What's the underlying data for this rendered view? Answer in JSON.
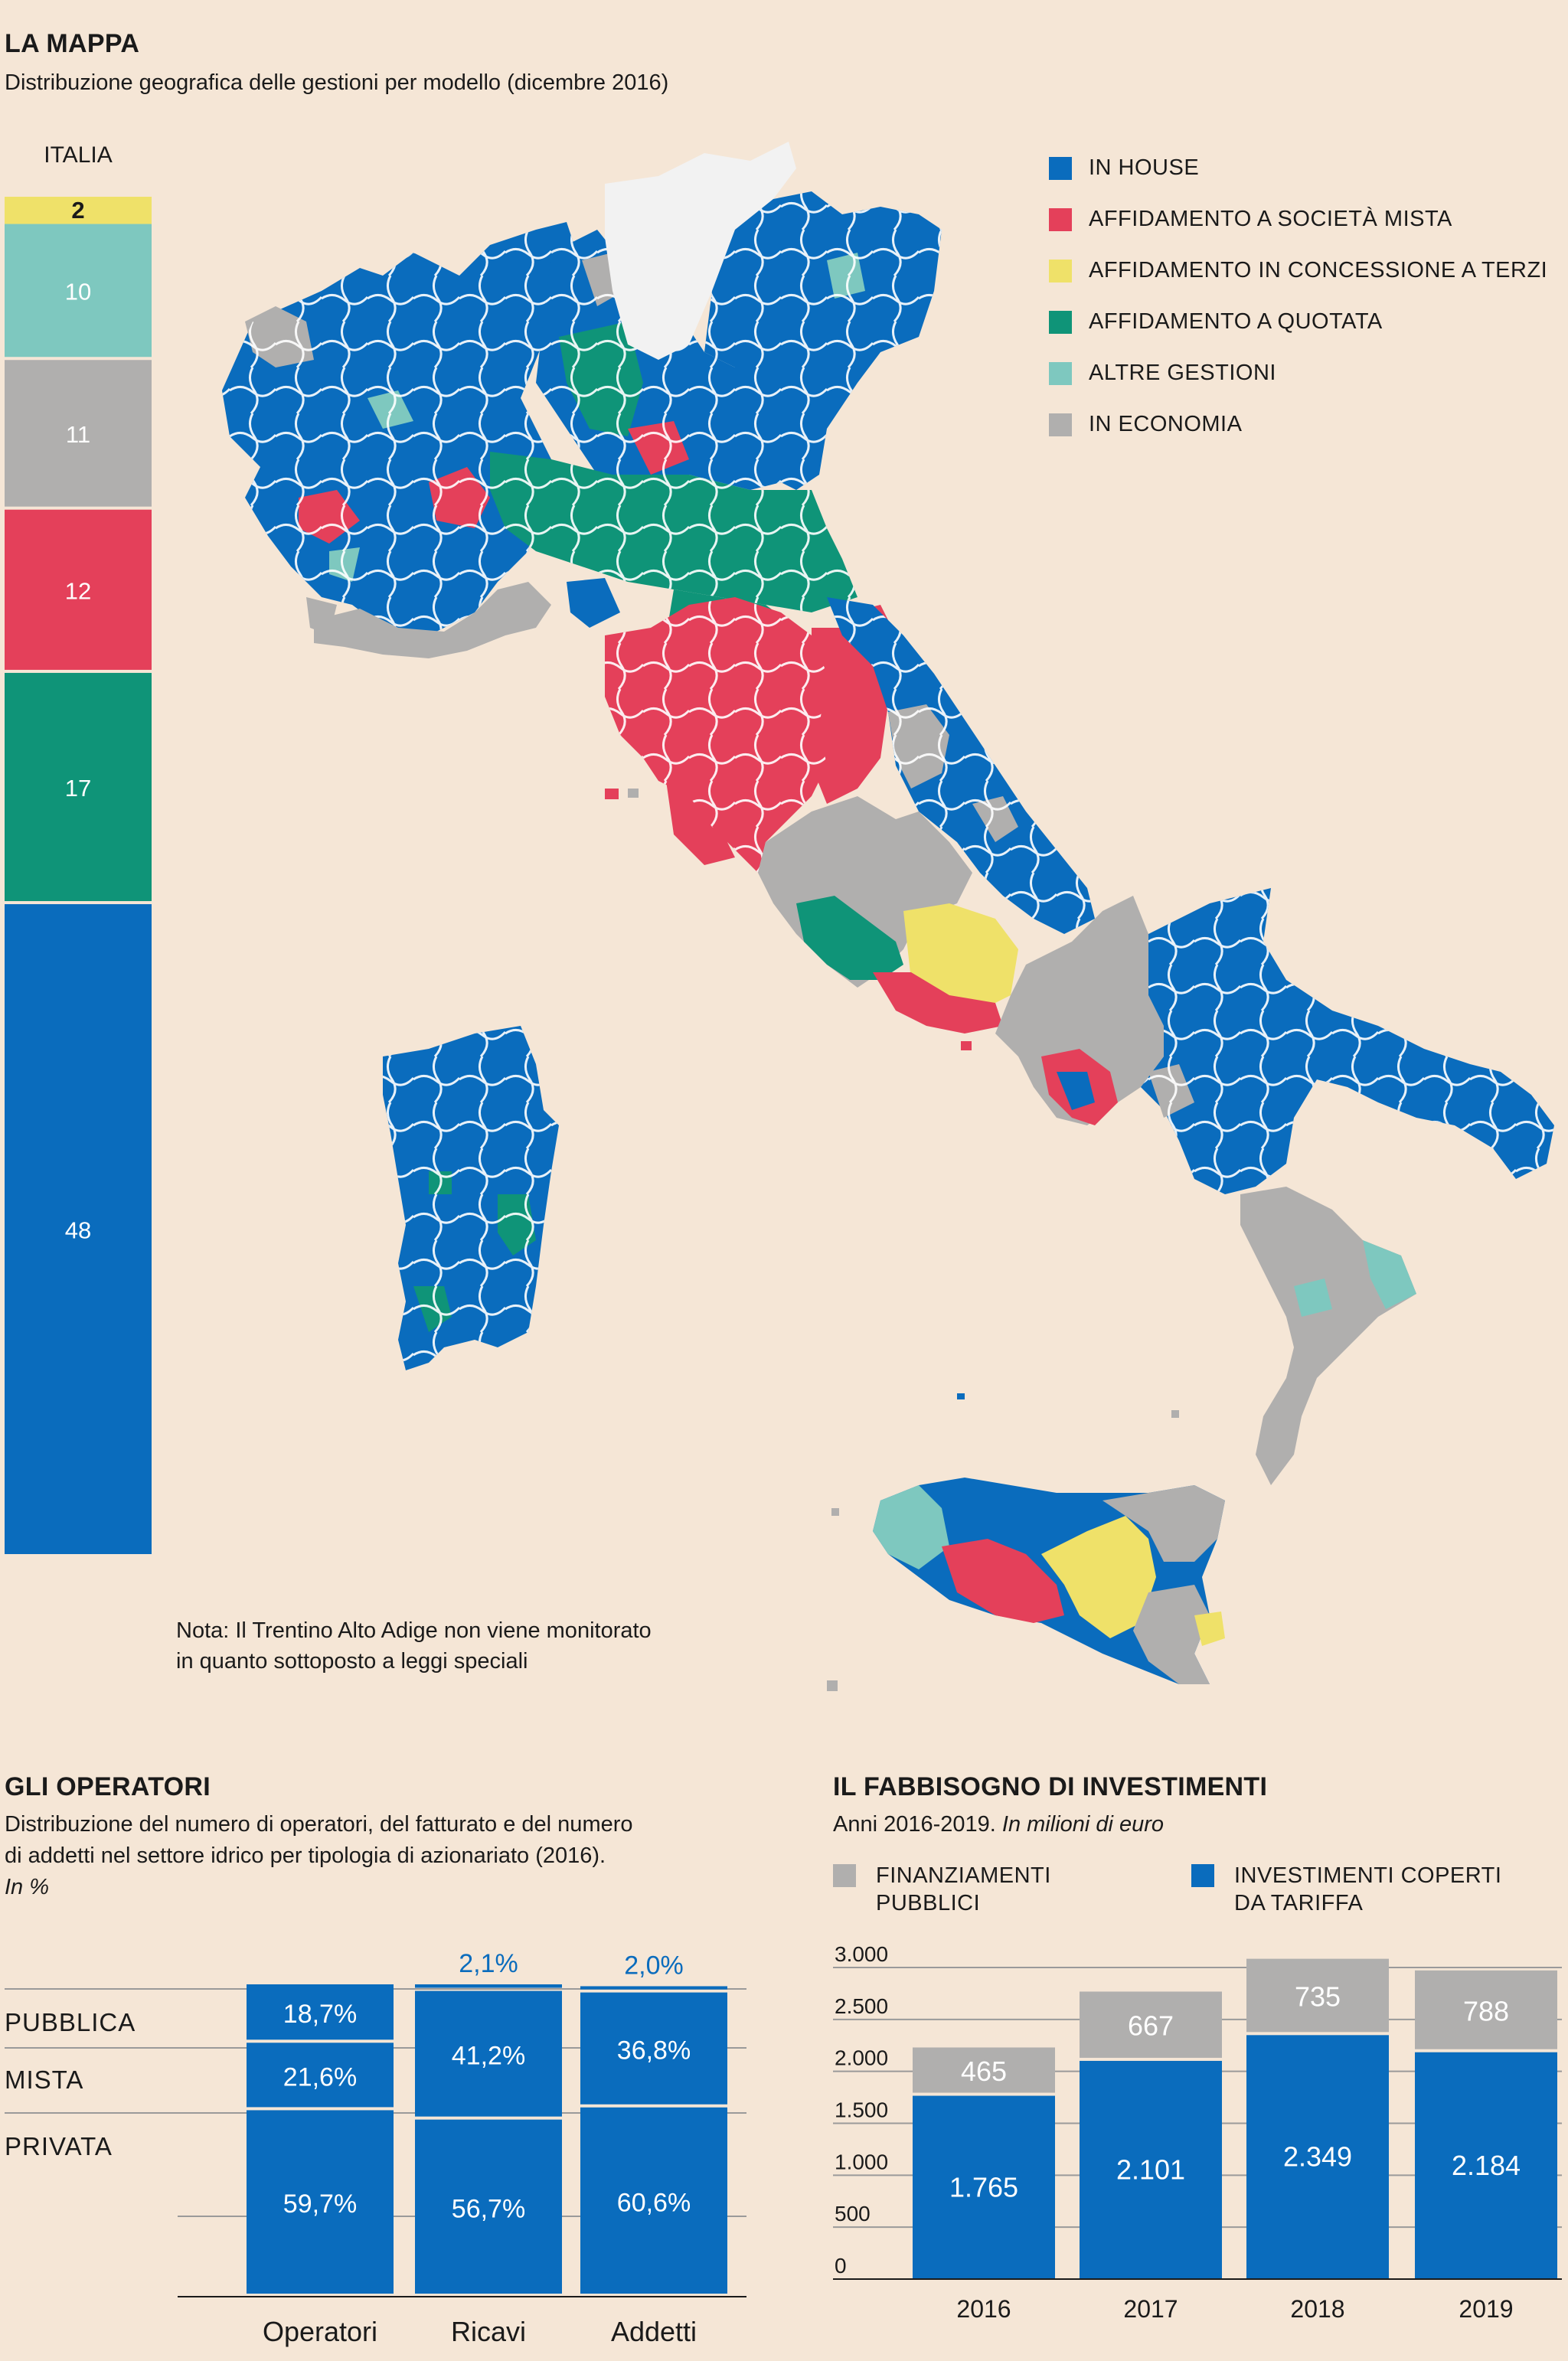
{
  "colors": {
    "in_house": "#0a6cbd",
    "societa_mista": "#e4405a",
    "concessione": "#efe169",
    "quotata": "#0f9478",
    "altre": "#7ec8bf",
    "economia": "#b0afae",
    "non_monitorato": "#f2f2f2"
  },
  "map_section": {
    "title": "LA MAPPA",
    "subtitle": "Distribuzione geografica delle gestioni per modello (dicembre 2016)",
    "note_line1": "Nota: Il Trentino Alto Adige non viene monitorato",
    "note_line2": "in quanto sottoposto a leggi speciali",
    "legend": [
      {
        "label": "IN HOUSE",
        "color": "#0a6cbd"
      },
      {
        "label": "AFFIDAMENTO A SOCIETÀ MISTA",
        "color": "#e4405a"
      },
      {
        "label": "AFFIDAMENTO IN CONCESSIONE A TERZI",
        "color": "#efe169"
      },
      {
        "label": "AFFIDAMENTO A QUOTATA",
        "color": "#0f9478"
      },
      {
        "label": "ALTRE GESTIONI",
        "color": "#7ec8bf"
      },
      {
        "label": "IN ECONOMIA",
        "color": "#b0afae"
      }
    ]
  },
  "operators_section": {
    "title": "GLI OPERATORI",
    "subtitle_line1": "Distribuzione del numero di operatori, del fatturato e del numero",
    "subtitle_line2": "di addetti nel settore idrico per tipologia di azionariato (2016).",
    "unit": "In %"
  },
  "investments_section": {
    "title": "IL FABBISOGNO DI INVESTIMENTI",
    "subtitle_plain": "Anni 2016-2019. ",
    "subtitle_italic": "In milioni di euro",
    "legend_a_line1": "FINANZIAMENTI",
    "legend_a_line2": "PUBBLICI",
    "legend_b_line1": "INVESTIMENTI COPERTI",
    "legend_b_line2": "DA TARIFFA"
  },
  "chart_data": [
    {
      "type": "bar",
      "title": "ITALIA",
      "orientation": "vertical-stacked",
      "unit": "%",
      "segments": [
        {
          "name": "IN HOUSE",
          "value": 48,
          "label": "48",
          "color": "#0a6cbd"
        },
        {
          "name": "AFFIDAMENTO A QUOTATA",
          "value": 17,
          "label": "17",
          "color": "#0f9478"
        },
        {
          "name": "AFFIDAMENTO A SOCIETÀ MISTA",
          "value": 12,
          "label": "12",
          "color": "#e4405a"
        },
        {
          "name": "IN ECONOMIA",
          "value": 11,
          "label": "11",
          "color": "#b0afae"
        },
        {
          "name": "ALTRE GESTIONI",
          "value": 10,
          "label": "10",
          "color": "#7ec8bf"
        },
        {
          "name": "AFFIDAMENTO IN CONCESSIONE A TERZI",
          "value": 2,
          "label": "2",
          "color": "#efe169"
        }
      ]
    },
    {
      "type": "bar",
      "title": "GLI OPERATORI",
      "stacked": true,
      "categories": [
        "Operatori",
        "Ricavi",
        "Addetti"
      ],
      "row_labels": [
        "PUBBLICA",
        "MISTA",
        "PRIVATA"
      ],
      "series": [
        {
          "name": "PRIVATA",
          "values": [
            59.7,
            56.7,
            60.6
          ],
          "labels": [
            "59,7%",
            "56,7%",
            "60,6%"
          ]
        },
        {
          "name": "MISTA",
          "values": [
            21.6,
            41.2,
            36.8
          ],
          "labels": [
            "21,6%",
            "41,2%",
            "36,8%"
          ]
        },
        {
          "name": "PUBBLICA",
          "values": [
            18.7,
            2.1,
            2.0
          ],
          "labels": [
            "18,7%",
            "2,1%",
            "2,0%"
          ]
        }
      ],
      "ylim": [
        0,
        100
      ]
    },
    {
      "type": "bar",
      "title": "IL FABBISOGNO DI INVESTIMENTI",
      "stacked": true,
      "categories": [
        "2016",
        "2017",
        "2018",
        "2019"
      ],
      "series": [
        {
          "name": "INVESTIMENTI COPERTI DA TARIFFA",
          "values": [
            1765,
            2101,
            2349,
            2184
          ],
          "labels": [
            "1.765",
            "2.101",
            "2.349",
            "2.184"
          ],
          "color": "#0a6cbd"
        },
        {
          "name": "FINANZIAMENTI PUBBLICI",
          "values": [
            465,
            667,
            735,
            788
          ],
          "labels": [
            "465",
            "667",
            "735",
            "788"
          ],
          "color": "#b0afae"
        }
      ],
      "yticks": [
        0,
        500,
        1000,
        1500,
        2000,
        2500,
        3000
      ],
      "ytick_labels": [
        "0",
        "500",
        "1.000",
        "1.500",
        "2.000",
        "2.500",
        "3.000"
      ],
      "ylim": [
        0,
        3000
      ]
    }
  ]
}
